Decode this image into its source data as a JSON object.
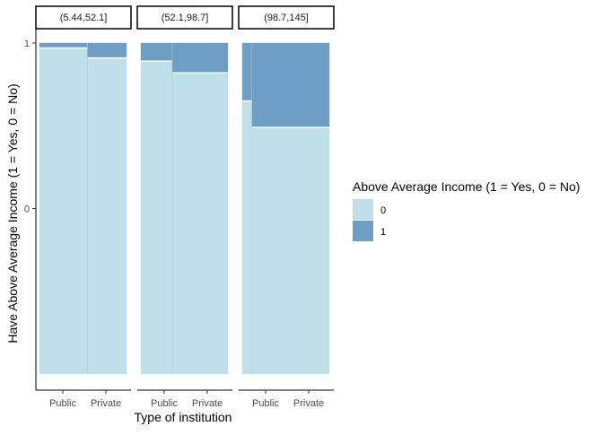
{
  "chart_data": {
    "type": "mosaic",
    "facet_labels": [
      "(5.44,52.1]",
      "(52.1,98.7]",
      "(98.7,145]"
    ],
    "categories": [
      "Public",
      "Private"
    ],
    "xlabel": "Type of institution",
    "ylabel": "Have Above Average Income (1 = Yes, 0 = No)",
    "y_ticks": [
      "0",
      "1"
    ],
    "legend": {
      "title": "Above Average Income (1 = Yes, 0 = No)",
      "placement": "right",
      "items": [
        {
          "label": "0",
          "color": "#bfe0ea"
        },
        {
          "label": "1",
          "color": "#6e9dc6"
        }
      ]
    },
    "panels": [
      {
        "facet": "(5.44,52.1]",
        "public_width_share": 0.55,
        "proportion_1": [
          0.015,
          0.045
        ]
      },
      {
        "facet": "(52.1,98.7]",
        "public_width_share": 0.36,
        "proportion_1": [
          0.055,
          0.09
        ]
      },
      {
        "facet": "(98.7,145]",
        "public_width_share": 0.11,
        "proportion_1": [
          0.175,
          0.255
        ]
      }
    ]
  }
}
